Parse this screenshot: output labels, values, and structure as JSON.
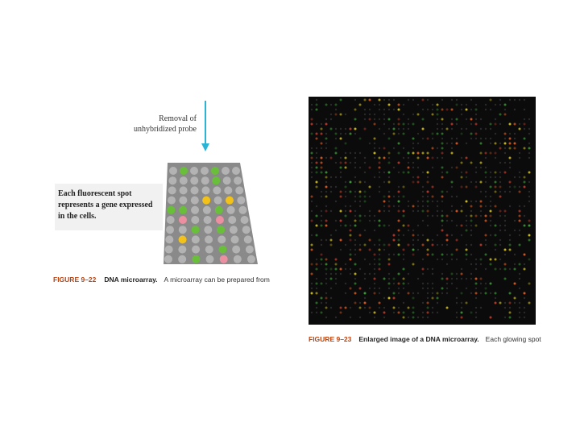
{
  "left_figure": {
    "arrow_label": [
      "Removal of",
      "unhybridized probe"
    ],
    "callout": [
      "Each fluorescent spot",
      "represents a gene expressed",
      "in the cells."
    ],
    "caption": {
      "number": "FIGURE 9–22",
      "title": "DNA microarray.",
      "text": "A microarray can be prepared from"
    }
  },
  "right_figure": {
    "caption": {
      "number": "FIGURE 9–23",
      "title": "Enlarged image of a DNA microarray.",
      "text": "Each glowing spot"
    }
  }
}
